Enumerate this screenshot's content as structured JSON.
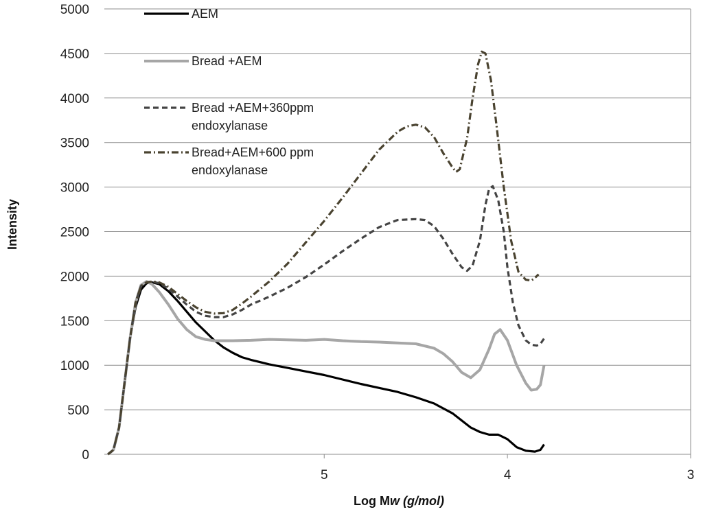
{
  "chart_data": {
    "type": "line",
    "title": "",
    "xlabel": {
      "main": "Log M",
      "italic_sub": "w",
      "unit": " (g/mol)"
    },
    "ylabel": "Intensity",
    "x_direction": "descending",
    "xlim": [
      6.2,
      3.0
    ],
    "ylim": [
      0,
      5000
    ],
    "y_ticks": [
      0,
      500,
      1000,
      1500,
      2000,
      2500,
      3000,
      3500,
      4000,
      4500,
      5000
    ],
    "x_ticks": [
      5,
      4,
      3
    ],
    "grid": "horizontal",
    "legend_position": "top-left",
    "series": [
      {
        "name": "AEM",
        "color": "#000000",
        "dash": "solid",
        "points": [
          [
            6.18,
            0
          ],
          [
            6.15,
            50
          ],
          [
            6.12,
            300
          ],
          [
            6.09,
            800
          ],
          [
            6.06,
            1300
          ],
          [
            6.03,
            1650
          ],
          [
            6.0,
            1850
          ],
          [
            5.97,
            1920
          ],
          [
            5.94,
            1930
          ],
          [
            5.9,
            1910
          ],
          [
            5.85,
            1830
          ],
          [
            5.8,
            1720
          ],
          [
            5.75,
            1600
          ],
          [
            5.7,
            1480
          ],
          [
            5.65,
            1380
          ],
          [
            5.6,
            1280
          ],
          [
            5.55,
            1200
          ],
          [
            5.5,
            1140
          ],
          [
            5.45,
            1090
          ],
          [
            5.4,
            1060
          ],
          [
            5.3,
            1010
          ],
          [
            5.2,
            970
          ],
          [
            5.1,
            930
          ],
          [
            5.0,
            890
          ],
          [
            4.9,
            840
          ],
          [
            4.8,
            790
          ],
          [
            4.7,
            745
          ],
          [
            4.6,
            700
          ],
          [
            4.5,
            640
          ],
          [
            4.4,
            570
          ],
          [
            4.3,
            460
          ],
          [
            4.2,
            300
          ],
          [
            4.15,
            250
          ],
          [
            4.1,
            220
          ],
          [
            4.05,
            220
          ],
          [
            4.0,
            170
          ],
          [
            3.95,
            80
          ],
          [
            3.9,
            40
          ],
          [
            3.85,
            30
          ],
          [
            3.82,
            50
          ],
          [
            3.8,
            110
          ]
        ]
      },
      {
        "name": "Bread +AEM",
        "color": "#a6a6a6",
        "dash": "solid",
        "points": [
          [
            6.18,
            0
          ],
          [
            6.15,
            50
          ],
          [
            6.12,
            300
          ],
          [
            6.09,
            800
          ],
          [
            6.06,
            1300
          ],
          [
            6.03,
            1700
          ],
          [
            6.0,
            1900
          ],
          [
            5.97,
            1940
          ],
          [
            5.94,
            1910
          ],
          [
            5.9,
            1820
          ],
          [
            5.85,
            1680
          ],
          [
            5.8,
            1520
          ],
          [
            5.75,
            1400
          ],
          [
            5.7,
            1320
          ],
          [
            5.65,
            1290
          ],
          [
            5.6,
            1275
          ],
          [
            5.5,
            1275
          ],
          [
            5.4,
            1280
          ],
          [
            5.3,
            1290
          ],
          [
            5.2,
            1285
          ],
          [
            5.1,
            1280
          ],
          [
            5.0,
            1290
          ],
          [
            4.9,
            1275
          ],
          [
            4.8,
            1265
          ],
          [
            4.7,
            1260
          ],
          [
            4.6,
            1250
          ],
          [
            4.5,
            1240
          ],
          [
            4.4,
            1190
          ],
          [
            4.35,
            1130
          ],
          [
            4.3,
            1040
          ],
          [
            4.25,
            920
          ],
          [
            4.2,
            860
          ],
          [
            4.15,
            950
          ],
          [
            4.1,
            1180
          ],
          [
            4.07,
            1350
          ],
          [
            4.04,
            1400
          ],
          [
            4.0,
            1280
          ],
          [
            3.95,
            1000
          ],
          [
            3.9,
            800
          ],
          [
            3.87,
            720
          ],
          [
            3.84,
            730
          ],
          [
            3.82,
            780
          ],
          [
            3.8,
            1000
          ]
        ]
      },
      {
        "name": "Bread +AEM+360ppm endoxylanase",
        "color": "#444444",
        "dash": "8,5",
        "points": [
          [
            6.18,
            0
          ],
          [
            6.15,
            50
          ],
          [
            6.12,
            300
          ],
          [
            6.09,
            800
          ],
          [
            6.06,
            1300
          ],
          [
            6.03,
            1700
          ],
          [
            6.0,
            1890
          ],
          [
            5.97,
            1930
          ],
          [
            5.94,
            1940
          ],
          [
            5.9,
            1920
          ],
          [
            5.85,
            1860
          ],
          [
            5.8,
            1770
          ],
          [
            5.75,
            1680
          ],
          [
            5.7,
            1600
          ],
          [
            5.65,
            1555
          ],
          [
            5.6,
            1540
          ],
          [
            5.55,
            1540
          ],
          [
            5.5,
            1570
          ],
          [
            5.45,
            1620
          ],
          [
            5.4,
            1680
          ],
          [
            5.3,
            1770
          ],
          [
            5.2,
            1870
          ],
          [
            5.1,
            1990
          ],
          [
            5.0,
            2130
          ],
          [
            4.9,
            2280
          ],
          [
            4.8,
            2420
          ],
          [
            4.7,
            2550
          ],
          [
            4.6,
            2630
          ],
          [
            4.5,
            2640
          ],
          [
            4.45,
            2630
          ],
          [
            4.4,
            2560
          ],
          [
            4.35,
            2420
          ],
          [
            4.3,
            2250
          ],
          [
            4.25,
            2100
          ],
          [
            4.22,
            2060
          ],
          [
            4.19,
            2120
          ],
          [
            4.15,
            2400
          ],
          [
            4.12,
            2800
          ],
          [
            4.1,
            2980
          ],
          [
            4.08,
            3010
          ],
          [
            4.05,
            2850
          ],
          [
            4.02,
            2500
          ],
          [
            4.0,
            2100
          ],
          [
            3.97,
            1700
          ],
          [
            3.94,
            1450
          ],
          [
            3.9,
            1280
          ],
          [
            3.87,
            1230
          ],
          [
            3.84,
            1220
          ],
          [
            3.82,
            1240
          ],
          [
            3.8,
            1300
          ]
        ]
      },
      {
        "name": "Bread+AEM+600 ppm endoxylanase",
        "color": "#4a4330",
        "dash": "10,4,2,4",
        "points": [
          [
            6.18,
            0
          ],
          [
            6.15,
            50
          ],
          [
            6.12,
            300
          ],
          [
            6.09,
            800
          ],
          [
            6.06,
            1300
          ],
          [
            6.03,
            1700
          ],
          [
            6.0,
            1890
          ],
          [
            5.97,
            1930
          ],
          [
            5.94,
            1940
          ],
          [
            5.9,
            1930
          ],
          [
            5.85,
            1880
          ],
          [
            5.8,
            1800
          ],
          [
            5.75,
            1720
          ],
          [
            5.7,
            1650
          ],
          [
            5.65,
            1600
          ],
          [
            5.6,
            1580
          ],
          [
            5.55,
            1585
          ],
          [
            5.5,
            1620
          ],
          [
            5.45,
            1690
          ],
          [
            5.4,
            1770
          ],
          [
            5.3,
            1940
          ],
          [
            5.2,
            2140
          ],
          [
            5.1,
            2380
          ],
          [
            5.0,
            2620
          ],
          [
            4.9,
            2880
          ],
          [
            4.8,
            3150
          ],
          [
            4.7,
            3420
          ],
          [
            4.6,
            3620
          ],
          [
            4.55,
            3680
          ],
          [
            4.5,
            3700
          ],
          [
            4.45,
            3670
          ],
          [
            4.4,
            3560
          ],
          [
            4.35,
            3380
          ],
          [
            4.3,
            3220
          ],
          [
            4.28,
            3170
          ],
          [
            4.26,
            3200
          ],
          [
            4.22,
            3550
          ],
          [
            4.19,
            4000
          ],
          [
            4.16,
            4380
          ],
          [
            4.14,
            4520
          ],
          [
            4.12,
            4500
          ],
          [
            4.09,
            4200
          ],
          [
            4.06,
            3700
          ],
          [
            4.02,
            3000
          ],
          [
            3.98,
            2400
          ],
          [
            3.94,
            2050
          ],
          [
            3.9,
            1960
          ],
          [
            3.87,
            1950
          ],
          [
            3.85,
            1980
          ],
          [
            3.83,
            2020
          ]
        ]
      }
    ]
  }
}
